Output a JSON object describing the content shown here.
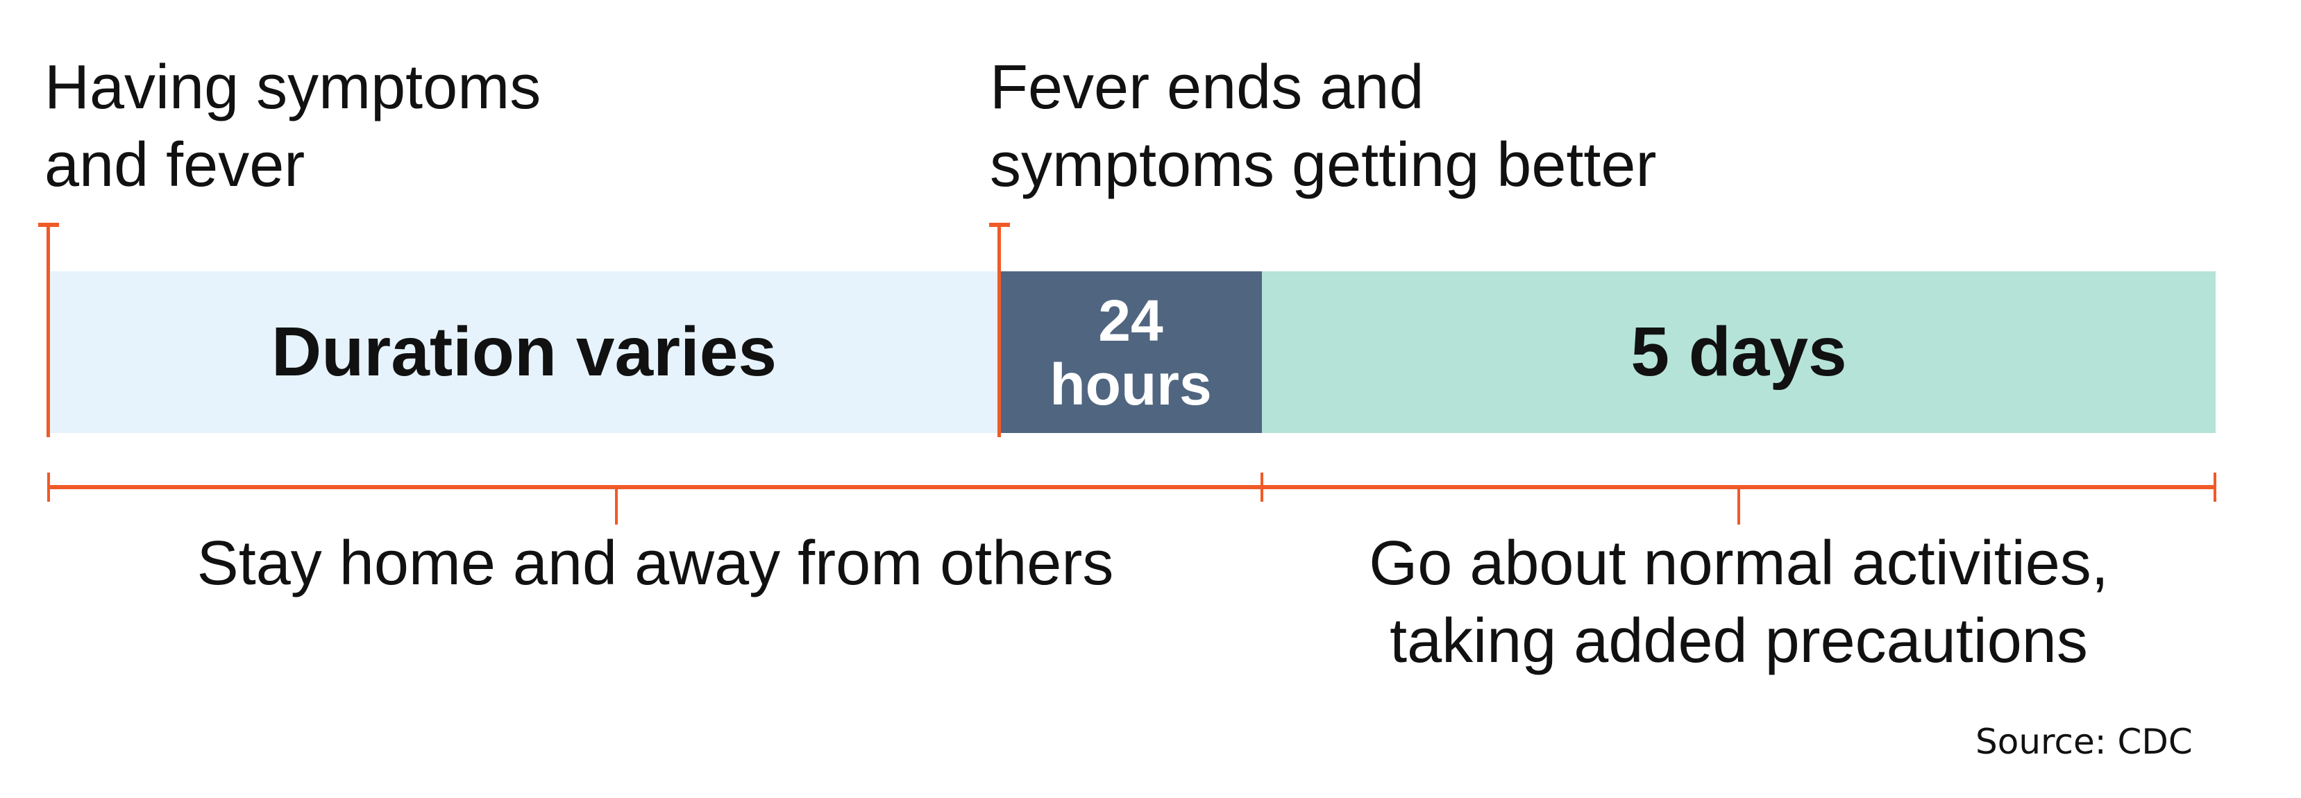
{
  "milestones": {
    "start": "Having symptoms\nand fever",
    "fever_end": "Fever ends and\nsymptoms getting better"
  },
  "segments": [
    {
      "label": "Duration varies",
      "color": "#e6f3fc",
      "text_color": "#111111"
    },
    {
      "label": "24\nhours",
      "color": "#506580",
      "text_color": "#ffffff"
    },
    {
      "label": "5 days",
      "color": "#b5e3d8",
      "text_color": "#111111"
    }
  ],
  "periods": [
    {
      "label": "Stay home and away from others"
    },
    {
      "label": "Go about normal activities,\ntaking added precautions"
    }
  ],
  "accent_color": "#f05a28",
  "source": "Source: CDC"
}
